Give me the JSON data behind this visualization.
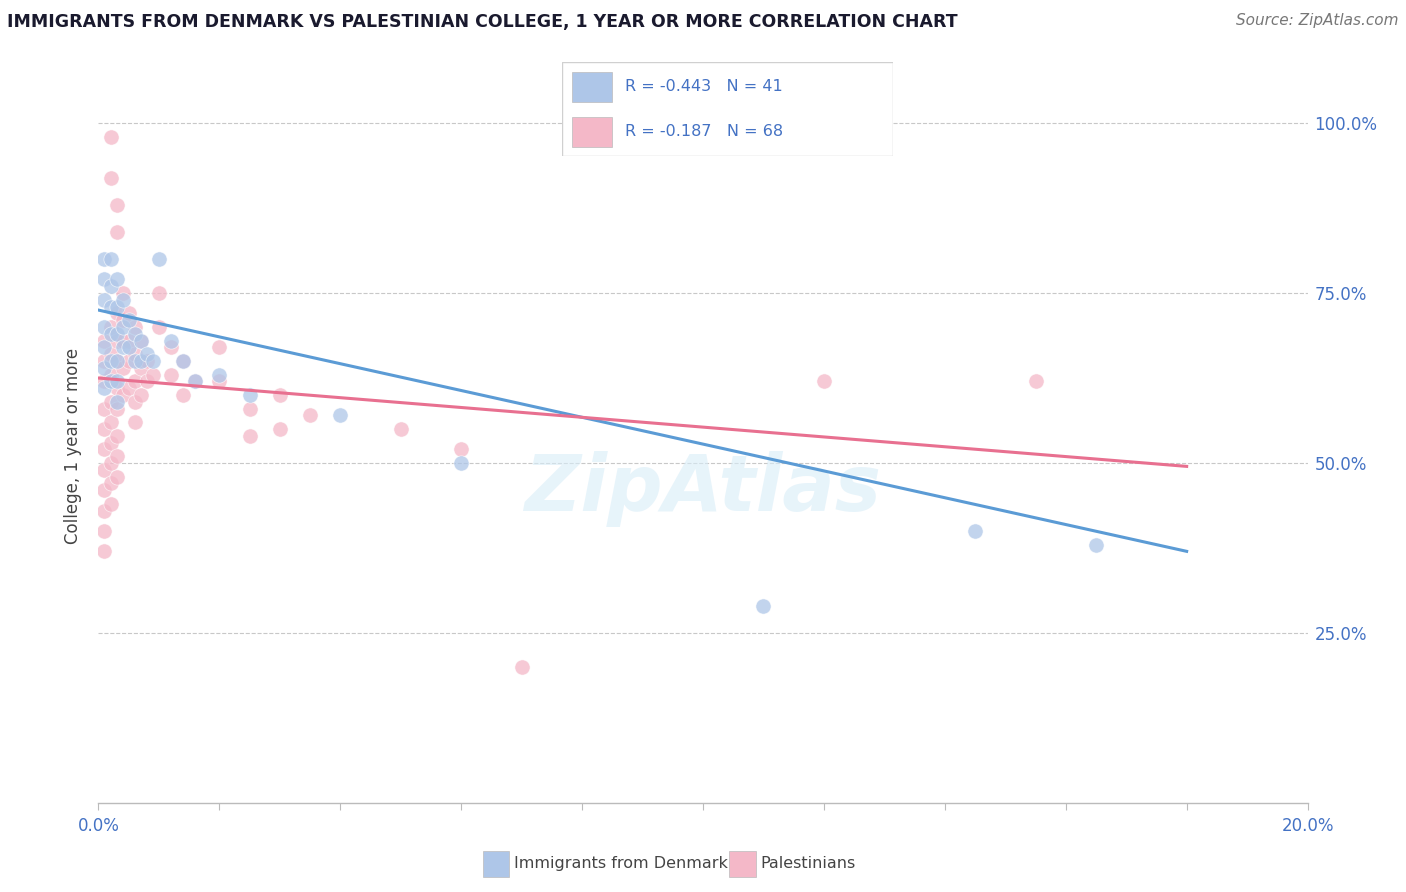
{
  "title": "IMMIGRANTS FROM DENMARK VS PALESTINIAN COLLEGE, 1 YEAR OR MORE CORRELATION CHART",
  "source_text": "Source: ZipAtlas.com",
  "ylabel": "College, 1 year or more",
  "xlim": [
    0.0,
    0.2
  ],
  "ylim": [
    0.0,
    1.05
  ],
  "color_blue": "#aec6e8",
  "color_pink": "#f4b8c8",
  "line_blue": "#5b9bd5",
  "line_pink": "#e87090",
  "watermark": "ZipAtlas",
  "denmark_points": [
    [
      0.001,
      0.8
    ],
    [
      0.001,
      0.77
    ],
    [
      0.001,
      0.74
    ],
    [
      0.001,
      0.7
    ],
    [
      0.001,
      0.67
    ],
    [
      0.001,
      0.64
    ],
    [
      0.001,
      0.61
    ],
    [
      0.002,
      0.8
    ],
    [
      0.002,
      0.76
    ],
    [
      0.002,
      0.73
    ],
    [
      0.002,
      0.69
    ],
    [
      0.002,
      0.65
    ],
    [
      0.002,
      0.62
    ],
    [
      0.003,
      0.77
    ],
    [
      0.003,
      0.73
    ],
    [
      0.003,
      0.69
    ],
    [
      0.003,
      0.65
    ],
    [
      0.003,
      0.62
    ],
    [
      0.003,
      0.59
    ],
    [
      0.004,
      0.74
    ],
    [
      0.004,
      0.7
    ],
    [
      0.004,
      0.67
    ],
    [
      0.005,
      0.71
    ],
    [
      0.005,
      0.67
    ],
    [
      0.006,
      0.69
    ],
    [
      0.006,
      0.65
    ],
    [
      0.007,
      0.68
    ],
    [
      0.007,
      0.65
    ],
    [
      0.008,
      0.66
    ],
    [
      0.009,
      0.65
    ],
    [
      0.01,
      0.8
    ],
    [
      0.012,
      0.68
    ],
    [
      0.014,
      0.65
    ],
    [
      0.016,
      0.62
    ],
    [
      0.02,
      0.63
    ],
    [
      0.025,
      0.6
    ],
    [
      0.04,
      0.57
    ],
    [
      0.06,
      0.5
    ],
    [
      0.11,
      0.29
    ],
    [
      0.145,
      0.4
    ],
    [
      0.165,
      0.38
    ]
  ],
  "palestinian_points": [
    [
      0.001,
      0.68
    ],
    [
      0.001,
      0.65
    ],
    [
      0.001,
      0.62
    ],
    [
      0.001,
      0.58
    ],
    [
      0.001,
      0.55
    ],
    [
      0.001,
      0.52
    ],
    [
      0.001,
      0.49
    ],
    [
      0.001,
      0.46
    ],
    [
      0.001,
      0.43
    ],
    [
      0.001,
      0.4
    ],
    [
      0.001,
      0.37
    ],
    [
      0.002,
      0.98
    ],
    [
      0.002,
      0.92
    ],
    [
      0.002,
      0.7
    ],
    [
      0.002,
      0.66
    ],
    [
      0.002,
      0.63
    ],
    [
      0.002,
      0.59
    ],
    [
      0.002,
      0.56
    ],
    [
      0.002,
      0.53
    ],
    [
      0.002,
      0.5
    ],
    [
      0.002,
      0.47
    ],
    [
      0.002,
      0.44
    ],
    [
      0.003,
      0.88
    ],
    [
      0.003,
      0.84
    ],
    [
      0.003,
      0.72
    ],
    [
      0.003,
      0.68
    ],
    [
      0.003,
      0.65
    ],
    [
      0.003,
      0.61
    ],
    [
      0.003,
      0.58
    ],
    [
      0.003,
      0.54
    ],
    [
      0.003,
      0.51
    ],
    [
      0.003,
      0.48
    ],
    [
      0.004,
      0.75
    ],
    [
      0.004,
      0.71
    ],
    [
      0.004,
      0.68
    ],
    [
      0.004,
      0.64
    ],
    [
      0.004,
      0.6
    ],
    [
      0.005,
      0.72
    ],
    [
      0.005,
      0.68
    ],
    [
      0.005,
      0.65
    ],
    [
      0.005,
      0.61
    ],
    [
      0.006,
      0.7
    ],
    [
      0.006,
      0.66
    ],
    [
      0.006,
      0.62
    ],
    [
      0.006,
      0.59
    ],
    [
      0.006,
      0.56
    ],
    [
      0.007,
      0.68
    ],
    [
      0.007,
      0.64
    ],
    [
      0.007,
      0.6
    ],
    [
      0.008,
      0.65
    ],
    [
      0.008,
      0.62
    ],
    [
      0.009,
      0.63
    ],
    [
      0.01,
      0.75
    ],
    [
      0.01,
      0.7
    ],
    [
      0.012,
      0.67
    ],
    [
      0.012,
      0.63
    ],
    [
      0.014,
      0.65
    ],
    [
      0.014,
      0.6
    ],
    [
      0.016,
      0.62
    ],
    [
      0.02,
      0.67
    ],
    [
      0.02,
      0.62
    ],
    [
      0.025,
      0.58
    ],
    [
      0.025,
      0.54
    ],
    [
      0.03,
      0.6
    ],
    [
      0.03,
      0.55
    ],
    [
      0.035,
      0.57
    ],
    [
      0.05,
      0.55
    ],
    [
      0.06,
      0.52
    ],
    [
      0.07,
      0.2
    ],
    [
      0.12,
      0.62
    ],
    [
      0.155,
      0.62
    ]
  ],
  "denmark_trend_x": [
    0.0,
    0.18
  ],
  "denmark_trend_y": [
    0.725,
    0.37
  ],
  "palestinian_trend_x": [
    0.0,
    0.18
  ],
  "palestinian_trend_y": [
    0.625,
    0.495
  ]
}
